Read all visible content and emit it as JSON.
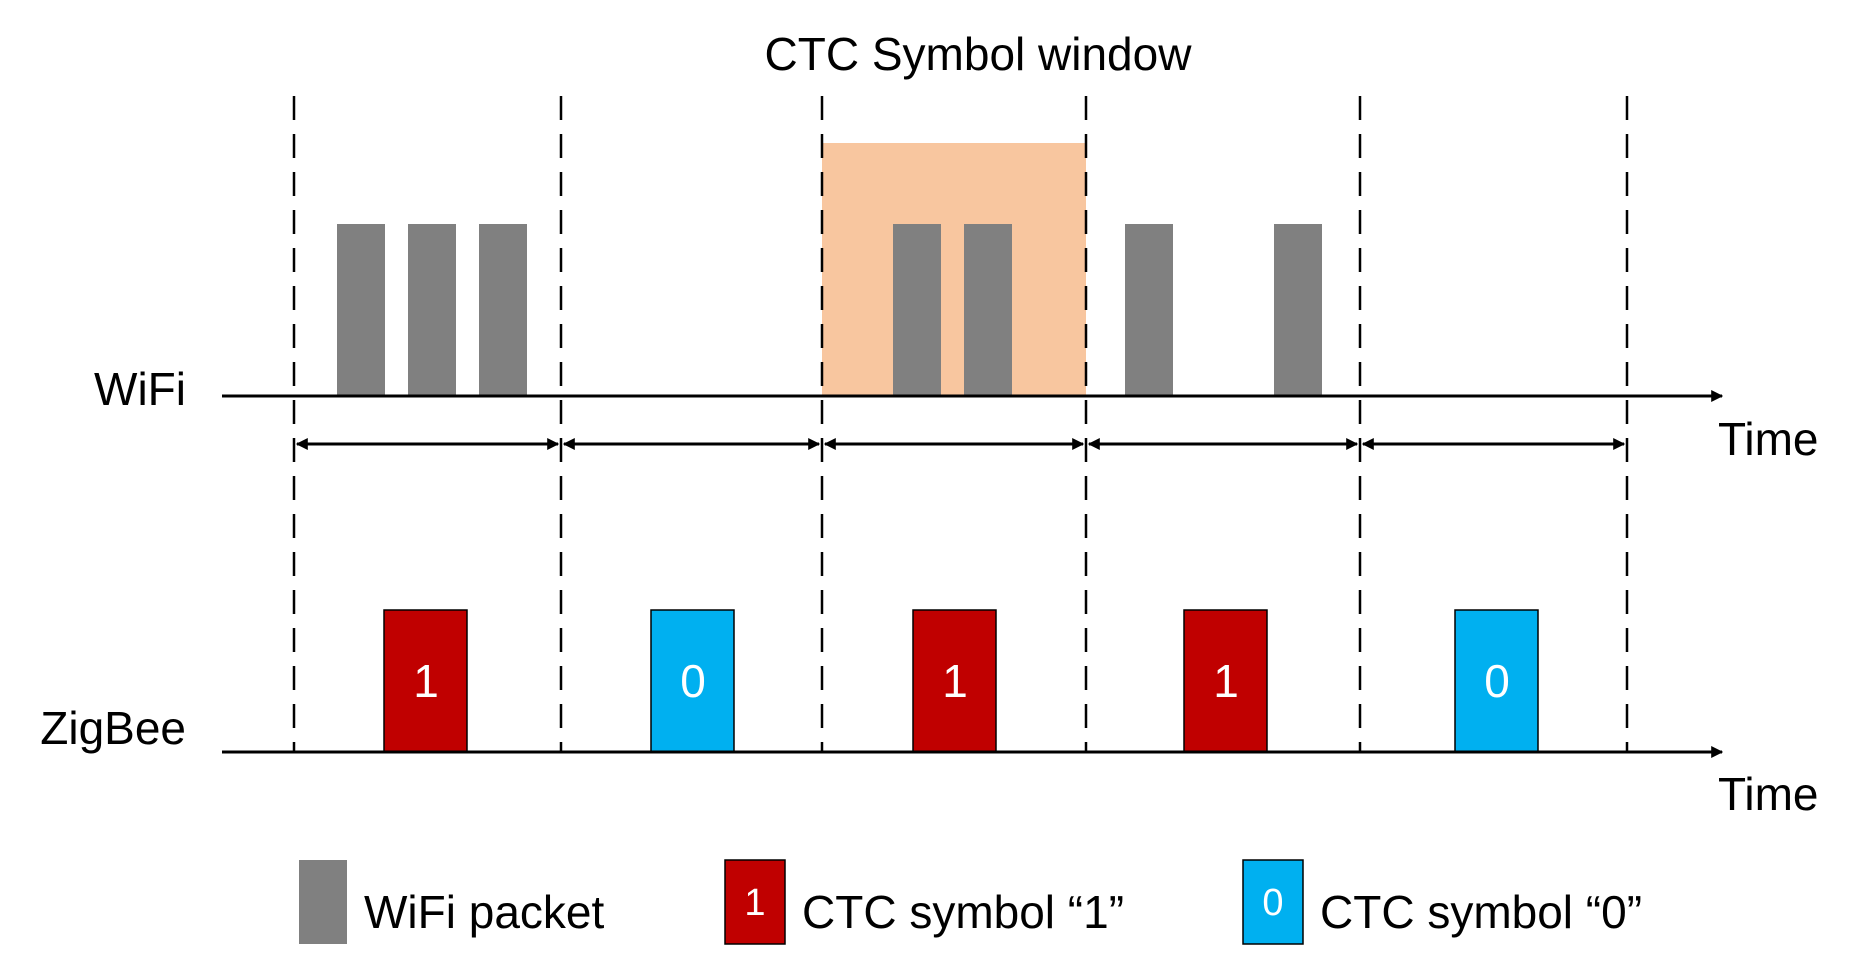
{
  "window_title": "CTC Symbol window",
  "rows": {
    "wifi_label": "WiFi",
    "zigbee_label": "ZigBee",
    "time_label_wifi": "Time",
    "time_label_zigbee": "Time"
  },
  "symbols": [
    "1",
    "0",
    "1",
    "1",
    "0"
  ],
  "legend": {
    "wifi_packet": "WiFi packet",
    "ctc_one_marker": "1",
    "ctc_one_label": "CTC symbol “1”",
    "ctc_zero_marker": "0",
    "ctc_zero_label": "CTC symbol “0”"
  },
  "colors": {
    "wifi_packet": "#808080",
    "ctc_one": "#c00000",
    "ctc_zero": "#00b0f0",
    "window_highlight": "#f8c69f",
    "line": "#000000",
    "symbol_text": "#ffffff"
  },
  "icons": {
    "boundary": "dashed-line",
    "duration": "double-headed-arrow",
    "axis": "right-arrow"
  }
}
